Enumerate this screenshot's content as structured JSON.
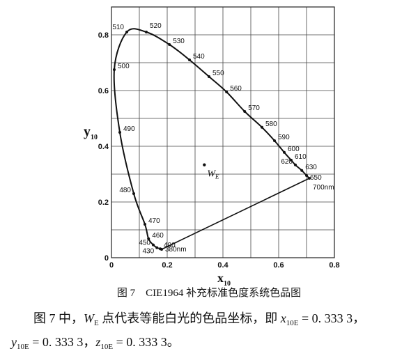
{
  "chart_data": {
    "type": "chromaticity",
    "xlabel": "x",
    "xlabel_sub": "10",
    "ylabel": "y",
    "ylabel_sub": "10",
    "xlim": [
      0,
      0.8
    ],
    "ylim": [
      0,
      0.9
    ],
    "xticks": [
      0,
      0.2,
      0.4,
      0.6,
      0.8
    ],
    "yticks": [
      0,
      0.2,
      0.4,
      0.6,
      0.8
    ],
    "minor_xticks": [
      0.1,
      0.3,
      0.5,
      0.7
    ],
    "minor_yticks": [
      0.1,
      0.3,
      0.5,
      0.7
    ],
    "grid": true,
    "color": "#111111",
    "categories": [
      "380nm",
      "400",
      "430",
      "450",
      "460",
      "470",
      "480",
      "490",
      "500",
      "510",
      "520",
      "530",
      "540",
      "550",
      "560",
      "570",
      "580",
      "590",
      "600",
      "610",
      "620",
      "630",
      "650",
      "700nm"
    ],
    "x": [
      0.18,
      0.175,
      0.163,
      0.15,
      0.133,
      0.12,
      0.08,
      0.03,
      0.01,
      0.055,
      0.125,
      0.208,
      0.28,
      0.35,
      0.413,
      0.478,
      0.54,
      0.585,
      0.62,
      0.645,
      0.66,
      0.683,
      0.7,
      0.71
    ],
    "values": [
      0.03,
      0.032,
      0.036,
      0.046,
      0.068,
      0.12,
      0.23,
      0.45,
      0.675,
      0.81,
      0.81,
      0.765,
      0.71,
      0.65,
      0.595,
      0.525,
      0.468,
      0.42,
      0.378,
      0.35,
      0.333,
      0.313,
      0.295,
      0.285
    ],
    "white_point": {
      "x": 0.3333,
      "y": 0.3333,
      "label": "W",
      "label_sub": "E"
    }
  },
  "caption": "图 7　CIE1964 补充标准色度系统色品图",
  "note": {
    "prefix": "图 7 中，",
    "w": "W",
    "w_sub": "E",
    "middle": " 点代表等能白光的色品坐标，即 ",
    "x": "x",
    "x_sub": "10E",
    "x_val": " = 0. 333 3，",
    "y": "y",
    "y_sub": "10E",
    "y_val": " = 0. 333 3，",
    "z": "z",
    "z_sub": "10E",
    "z_val": " = 0. 333 3。"
  }
}
